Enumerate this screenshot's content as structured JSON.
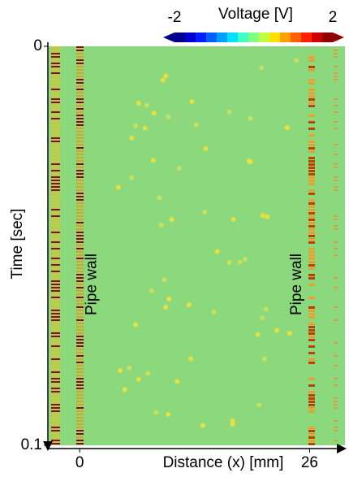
{
  "chart_data": {
    "type": "heatmap",
    "xlabel": "Distance (x) [mm]",
    "ylabel": "Time [sec]",
    "xlim": [
      -3.5,
      30
    ],
    "xticks": [
      0,
      26
    ],
    "ylim": [
      0,
      0.1
    ],
    "yticks": [
      0,
      0.1
    ],
    "y_inverted": true,
    "colorbar": {
      "label": "Voltage [V]",
      "lim": [
        -2,
        2
      ],
      "ticks": [
        -2,
        2
      ],
      "colormap": "jet"
    },
    "annotations": [
      {
        "text": "Pipe wall",
        "x": 1.4
      },
      {
        "text": "Pipe wall",
        "x": 24.6
      }
    ]
  }
}
